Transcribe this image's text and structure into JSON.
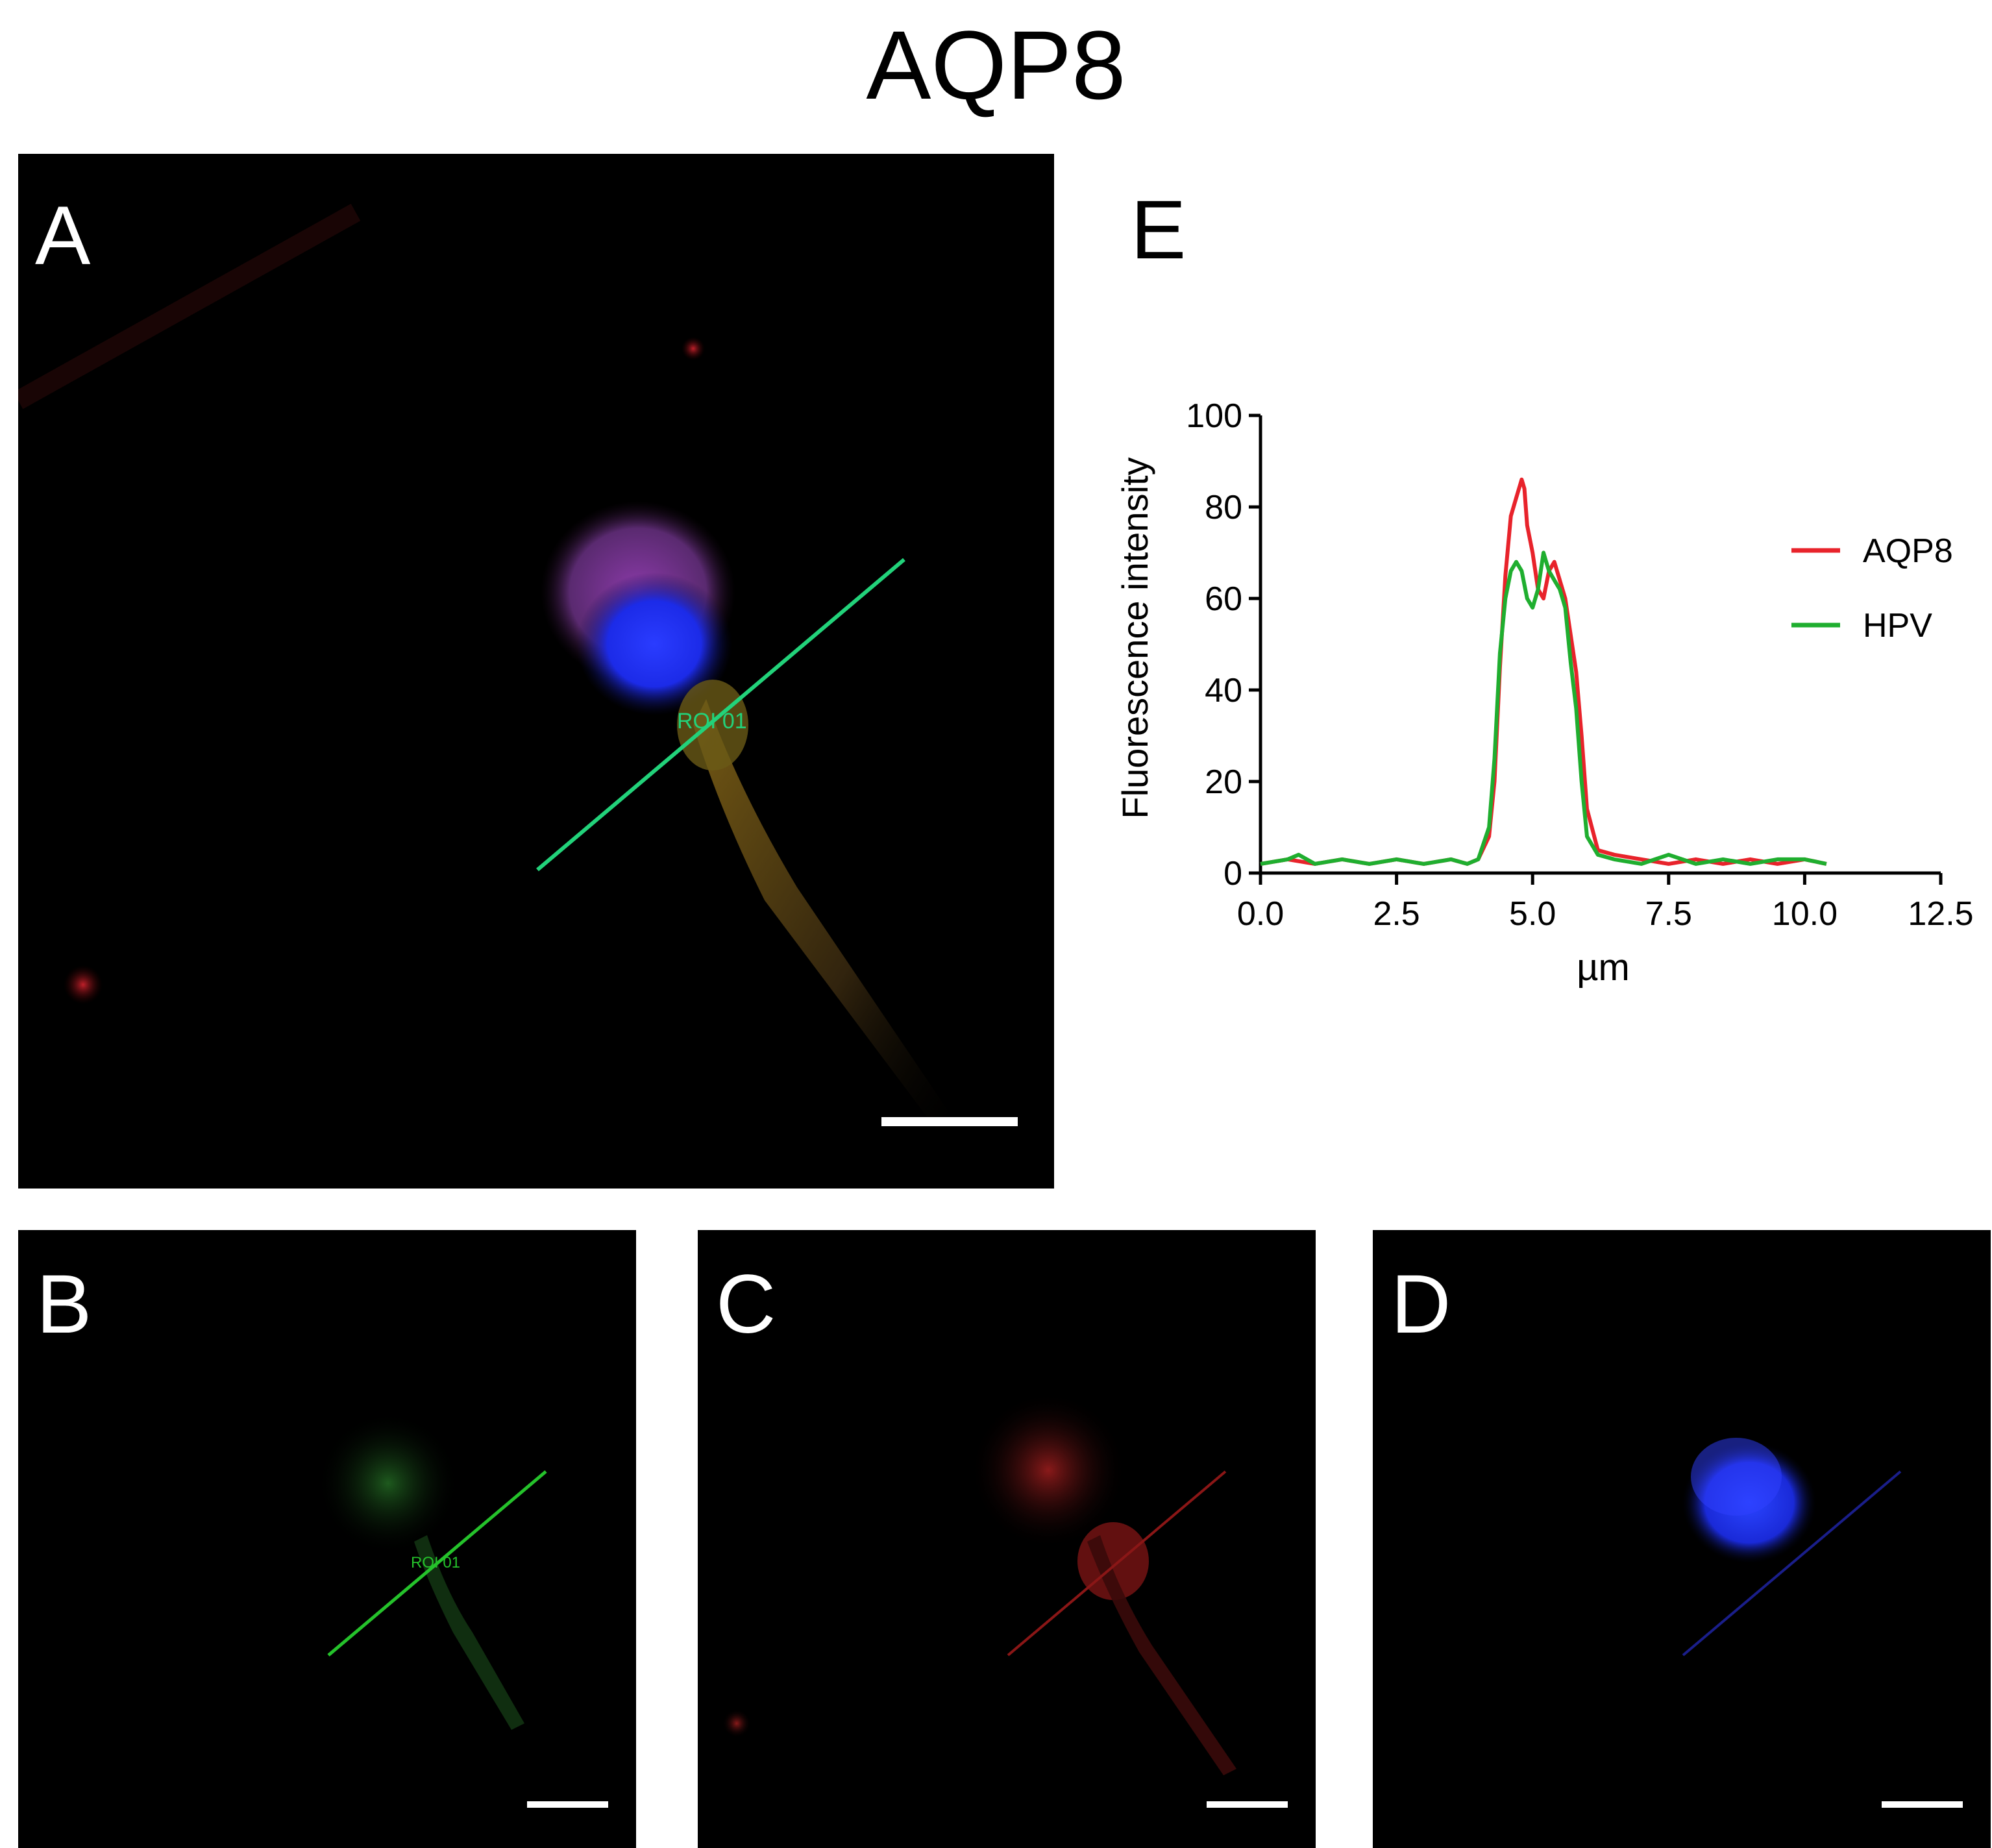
{
  "figure": {
    "title": "AQP8",
    "panels": [
      {
        "label": "A",
        "roi_label": "ROI 01"
      },
      {
        "label": "B",
        "roi_label": "ROI 01"
      },
      {
        "label": "C"
      },
      {
        "label": "D"
      },
      {
        "label": "E"
      }
    ]
  },
  "colors": {
    "aqp8": "#e8232b",
    "hpv": "#1fae2f",
    "dapi": "#1f3cff"
  },
  "chart_data": {
    "type": "line",
    "title": "",
    "xlabel": "µm",
    "ylabel": "Fluorescence intensity",
    "xlim": [
      0,
      12.5
    ],
    "ylim": [
      0,
      100
    ],
    "xticks": [
      "0.0",
      "2.5",
      "5.0",
      "7.5",
      "10.0",
      "12.5"
    ],
    "yticks": [
      "0",
      "20",
      "40",
      "60",
      "80",
      "100"
    ],
    "legend_position": "right",
    "grid": false,
    "series": [
      {
        "name": "AQP8",
        "color": "#e8232b",
        "x": [
          0,
          0.5,
          1.0,
          1.5,
          2.0,
          2.5,
          3.0,
          3.5,
          3.8,
          4.0,
          4.2,
          4.3,
          4.4,
          4.5,
          4.6,
          4.7,
          4.8,
          4.85,
          4.9,
          5.0,
          5.1,
          5.2,
          5.3,
          5.4,
          5.5,
          5.6,
          5.7,
          5.8,
          5.9,
          6.0,
          6.2,
          6.5,
          7.0,
          7.5,
          8.0,
          8.5,
          9.0,
          9.5,
          10.0,
          10.4
        ],
        "y": [
          2,
          3,
          2,
          3,
          2,
          3,
          2,
          3,
          2,
          3,
          8,
          20,
          45,
          65,
          78,
          82,
          86,
          84,
          76,
          70,
          62,
          60,
          66,
          68,
          64,
          60,
          52,
          44,
          30,
          14,
          5,
          4,
          3,
          2,
          3,
          2,
          3,
          2,
          3,
          2
        ]
      },
      {
        "name": "HPV",
        "color": "#1fae2f",
        "x": [
          0,
          0.5,
          0.7,
          1.0,
          1.5,
          2.0,
          2.5,
          3.0,
          3.5,
          3.8,
          4.0,
          4.2,
          4.3,
          4.4,
          4.5,
          4.6,
          4.7,
          4.8,
          4.9,
          5.0,
          5.1,
          5.2,
          5.3,
          5.4,
          5.5,
          5.6,
          5.7,
          5.8,
          5.9,
          6.0,
          6.2,
          6.5,
          7.0,
          7.5,
          8.0,
          8.5,
          9.0,
          9.5,
          10.0,
          10.4
        ],
        "y": [
          2,
          3,
          4,
          2,
          3,
          2,
          3,
          2,
          3,
          2,
          3,
          10,
          25,
          48,
          60,
          66,
          68,
          66,
          60,
          58,
          62,
          70,
          66,
          64,
          62,
          58,
          46,
          36,
          20,
          8,
          4,
          3,
          2,
          4,
          2,
          3,
          2,
          3,
          3,
          2
        ]
      }
    ]
  }
}
